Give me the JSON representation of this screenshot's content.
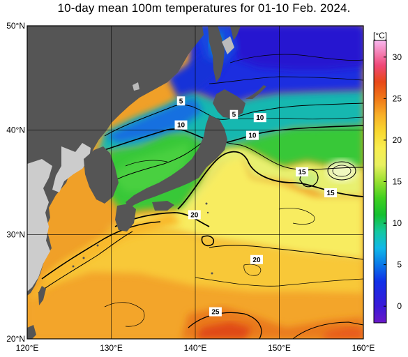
{
  "title": "10-day mean 100m temperatures for 01-10 Feb. 2024.",
  "colorbar": {
    "unit_label": "[°C]",
    "tick_labels": [
      "30",
      "25",
      "20",
      "15",
      "10",
      "5",
      "0"
    ],
    "tick_values": [
      30,
      25,
      20,
      15,
      10,
      5,
      0
    ],
    "range": [
      -2,
      32
    ],
    "color_stops": [
      {
        "t": -2,
        "color": "#6a18c8"
      },
      {
        "t": 0,
        "color": "#3a1ad8"
      },
      {
        "t": 3,
        "color": "#1030e8"
      },
      {
        "t": 5,
        "color": "#0a78e8"
      },
      {
        "t": 7,
        "color": "#10b8e8"
      },
      {
        "t": 9,
        "color": "#14c8a0"
      },
      {
        "t": 11,
        "color": "#14c030"
      },
      {
        "t": 13,
        "color": "#40d020"
      },
      {
        "t": 15,
        "color": "#98e030"
      },
      {
        "t": 17,
        "color": "#e8f060"
      },
      {
        "t": 19,
        "color": "#f8ee50"
      },
      {
        "t": 21,
        "color": "#f8d830"
      },
      {
        "t": 23,
        "color": "#f8b028"
      },
      {
        "t": 25,
        "color": "#f07818"
      },
      {
        "t": 27,
        "color": "#e84818"
      },
      {
        "t": 29,
        "color": "#f04878"
      },
      {
        "t": 32,
        "color": "#f8b8f0"
      }
    ]
  },
  "axes": {
    "lon_labels": [
      "120°E",
      "130°E",
      "140°E",
      "150°E",
      "160°E"
    ],
    "lon_values": [
      120,
      130,
      140,
      150,
      160
    ],
    "lat_labels": [
      "50°N",
      "40°N",
      "30°N",
      "20°N"
    ],
    "lat_values": [
      50,
      40,
      30,
      20
    ],
    "lon_range": [
      120,
      160
    ],
    "lat_range": [
      20,
      50
    ]
  },
  "contour_labels": [
    {
      "text": "5",
      "lon": 138.3,
      "lat": 42.8
    },
    {
      "text": "5",
      "lon": 144.6,
      "lat": 41.5
    },
    {
      "text": "10",
      "lon": 138.3,
      "lat": 40.5
    },
    {
      "text": "10",
      "lon": 147.7,
      "lat": 41.2
    },
    {
      "text": "10",
      "lon": 146.8,
      "lat": 39.5
    },
    {
      "text": "15",
      "lon": 152.7,
      "lat": 36.0
    },
    {
      "text": "15",
      "lon": 156.1,
      "lat": 34.0
    },
    {
      "text": "20",
      "lon": 139.9,
      "lat": 31.9
    },
    {
      "text": "20",
      "lon": 147.3,
      "lat": 27.6
    },
    {
      "text": "25",
      "lon": 142.4,
      "lat": 22.6
    }
  ],
  "colors": {
    "land": "#555555",
    "land_light": "#cccccc",
    "grid": "#000000"
  }
}
